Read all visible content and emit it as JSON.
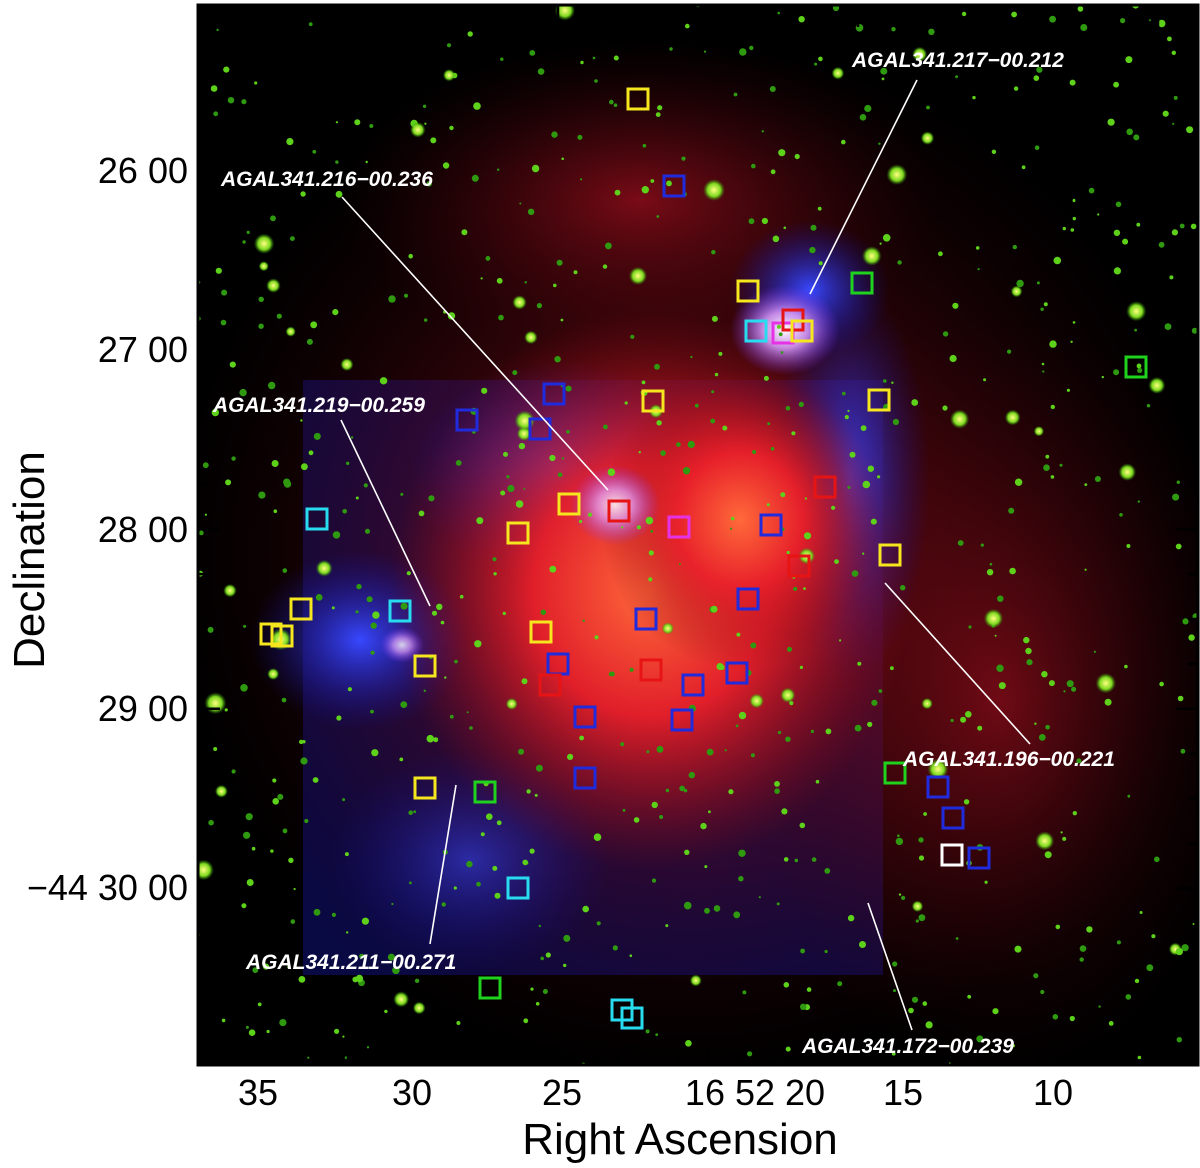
{
  "figure": {
    "xlabel": "Right Ascension",
    "ylabel": "Declination",
    "x_ticks": [
      "35",
      "30",
      "25",
      "16 52 20",
      "15",
      "10"
    ],
    "y_ticks": [
      "26 00",
      "27 00",
      "28 00",
      "29 00",
      "−44 30 00"
    ],
    "sources": [
      {
        "label": "AGAL341.217−00.212"
      },
      {
        "label": "AGAL341.216−00.236"
      },
      {
        "label": "AGAL341.219−00.259"
      },
      {
        "label": "AGAL341.196−00.221"
      },
      {
        "label": "AGAL341.211−00.271"
      },
      {
        "label": "AGAL341.172−00.239"
      }
    ],
    "marker_colors": {
      "yellow": "#f5e61e",
      "blue": "#1f2bdc",
      "red": "#e61414",
      "magenta": "#e632e6",
      "cyan": "#28dcf0",
      "green": "#1ed21e",
      "white": "#ffffff"
    }
  }
}
